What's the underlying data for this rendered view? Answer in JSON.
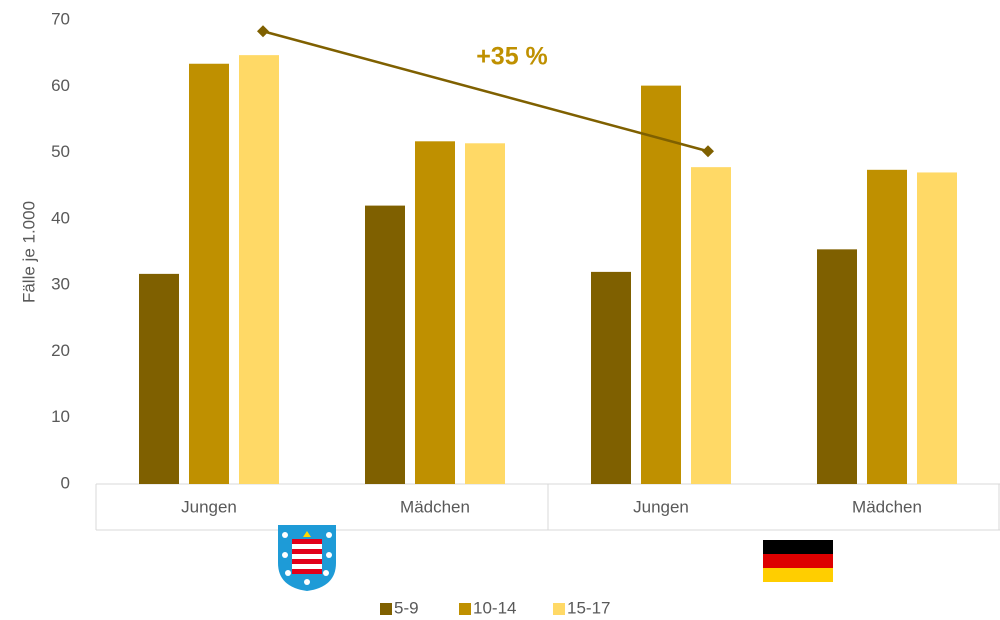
{
  "chart_data": {
    "type": "bar",
    "y_label": "Fälle je 1.000",
    "categories": [
      "Jungen",
      "Mädchen",
      "Jungen",
      "Mädchen"
    ],
    "series": [
      {
        "name": "5-9",
        "color": "#7f6000",
        "values": [
          31.7,
          42.0,
          32.0,
          35.4
        ]
      },
      {
        "name": "10-14",
        "color": "#bf9000",
        "values": [
          63.4,
          51.7,
          60.1,
          47.4
        ]
      },
      {
        "name": "15-17",
        "color": "#ffd966",
        "values": [
          64.7,
          51.4,
          47.8,
          47.0
        ]
      }
    ],
    "ylim": [
      0,
      70
    ],
    "yticks": [
      0,
      10,
      20,
      30,
      40,
      50,
      60,
      70
    ],
    "annotation": {
      "text": "+35 %",
      "color": "#bf9000"
    },
    "annotation_line": {
      "values": [
        68.3,
        50.2
      ],
      "color": "#7f6000"
    },
    "legend": "bottom"
  }
}
